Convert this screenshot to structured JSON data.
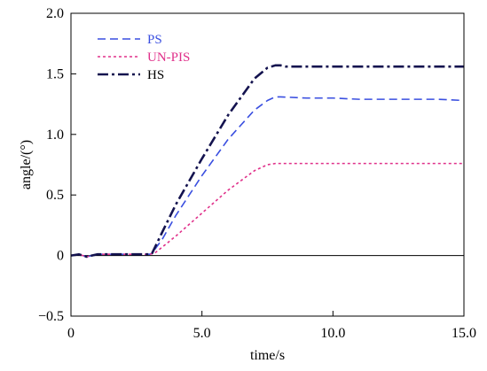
{
  "chart_data": {
    "type": "line",
    "title": "",
    "xlabel": "time/s",
    "ylabel": "angle/(°)",
    "xlim": [
      0,
      15
    ],
    "ylim": [
      -0.5,
      2.0
    ],
    "xticks": [
      0,
      5,
      10,
      15
    ],
    "xtick_labels": [
      "0",
      "5.0",
      "10.0",
      "15.0"
    ],
    "yticks": [
      -0.5,
      0,
      0.5,
      1.0,
      1.5,
      2.0
    ],
    "ytick_labels": [
      "−0.5",
      "0",
      "0.5",
      "1.0",
      "1.5",
      "2.0"
    ],
    "grid": false,
    "legend_position": "top-left",
    "series": [
      {
        "name": "PS",
        "color": "#3a4fe0",
        "style": "dashed",
        "x": [
          0,
          0.3,
          0.6,
          1.0,
          2.0,
          3.0,
          3.1,
          3.5,
          4.0,
          5.0,
          6.0,
          7.0,
          7.5,
          7.8,
          8.0,
          9.0,
          10.0,
          11.0,
          12.0,
          13.0,
          14.0,
          15.0
        ],
        "y": [
          0,
          0.01,
          -0.01,
          0.01,
          0.01,
          0.01,
          0.02,
          0.14,
          0.33,
          0.66,
          0.96,
          1.2,
          1.28,
          1.31,
          1.31,
          1.3,
          1.3,
          1.29,
          1.29,
          1.29,
          1.29,
          1.28
        ]
      },
      {
        "name": "UN-PIS",
        "color": "#e0308a",
        "style": "dotted",
        "x": [
          0,
          0.3,
          0.6,
          1.0,
          2.0,
          3.0,
          3.2,
          4.0,
          5.0,
          6.0,
          7.0,
          7.5,
          7.8,
          8.0,
          9.0,
          10.0,
          11.0,
          12.0,
          13.0,
          14.0,
          15.0
        ],
        "y": [
          0,
          0.01,
          -0.01,
          0.01,
          0.01,
          0.01,
          0.02,
          0.16,
          0.35,
          0.54,
          0.7,
          0.75,
          0.76,
          0.76,
          0.76,
          0.76,
          0.76,
          0.76,
          0.76,
          0.76,
          0.76
        ]
      },
      {
        "name": "HS",
        "color": "#14134f",
        "style": "dashdot",
        "x": [
          0,
          0.3,
          0.6,
          1.0,
          2.0,
          3.0,
          3.1,
          3.5,
          4.0,
          5.0,
          6.0,
          7.0,
          7.5,
          7.8,
          8.0,
          8.2,
          9.0,
          10.0,
          11.0,
          12.0,
          13.0,
          14.0,
          15.0
        ],
        "y": [
          0,
          0.01,
          -0.01,
          0.01,
          0.01,
          0.01,
          0.02,
          0.2,
          0.42,
          0.8,
          1.16,
          1.46,
          1.55,
          1.57,
          1.57,
          1.56,
          1.56,
          1.56,
          1.56,
          1.56,
          1.56,
          1.56,
          1.56
        ]
      }
    ]
  }
}
